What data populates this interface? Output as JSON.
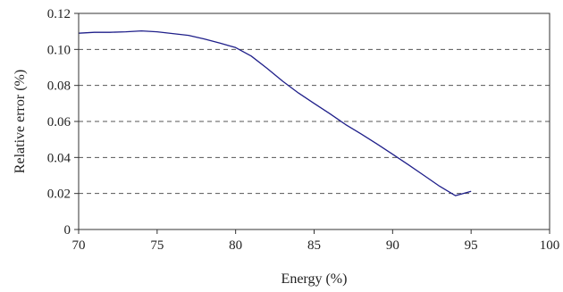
{
  "chart_data": {
    "type": "line",
    "title": "",
    "xlabel": "Energy (%)",
    "ylabel": "Relative error (%)",
    "xlim": [
      70,
      100
    ],
    "ylim": [
      0,
      0.12
    ],
    "xticks": [
      "70",
      "75",
      "80",
      "85",
      "90",
      "95",
      "100"
    ],
    "yticks": [
      "0",
      "0.02",
      "0.04",
      "0.06",
      "0.08",
      "0.10",
      "0.12"
    ],
    "grid": "horizontal-dashed",
    "legend": "none",
    "series": [
      {
        "color": "#1f1f8a",
        "x": [
          70,
          71,
          72,
          73,
          74,
          75,
          76,
          77,
          78,
          79,
          80,
          81,
          82,
          83,
          84,
          85,
          86,
          87,
          88,
          89,
          90,
          91,
          92,
          93,
          94,
          95
        ],
        "y": [
          0.109,
          0.1095,
          0.1095,
          0.1098,
          0.1103,
          0.1098,
          0.1088,
          0.1078,
          0.1058,
          0.1035,
          0.101,
          0.0963,
          0.0895,
          0.0823,
          0.0758,
          0.07,
          0.0643,
          0.0583,
          0.053,
          0.0475,
          0.0418,
          0.036,
          0.03,
          0.024,
          0.0188,
          0.0212
        ]
      }
    ]
  }
}
